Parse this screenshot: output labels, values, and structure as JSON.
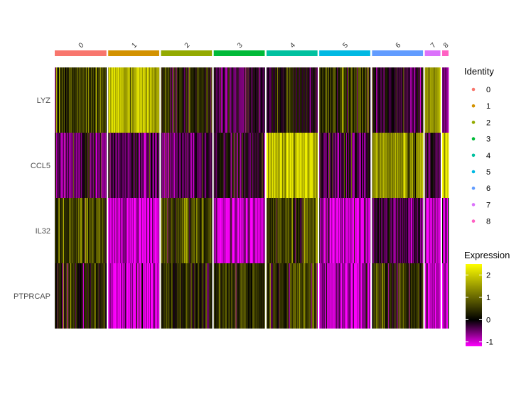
{
  "chart_data": {
    "type": "heatmap",
    "title": "",
    "xlabel": "",
    "ylabel": "",
    "genes": [
      "LYZ",
      "CCL5",
      "IL32",
      "PTPRCAP"
    ],
    "clusters": [
      {
        "id": "0",
        "color": "#F8766D",
        "cells": 73,
        "means": [
          0.5,
          -0.45,
          0.55,
          0.2
        ]
      },
      {
        "id": "1",
        "color": "#D39200",
        "cells": 72,
        "means": [
          1.8,
          -0.35,
          -0.95,
          -1.0
        ]
      },
      {
        "id": "2",
        "color": "#93AA00",
        "cells": 72,
        "means": [
          0.3,
          -0.3,
          0.7,
          0.3
        ]
      },
      {
        "id": "3",
        "color": "#00BA38",
        "cells": 72,
        "means": [
          -0.1,
          -0.15,
          -0.95,
          0.5
        ]
      },
      {
        "id": "4",
        "color": "#00C19F",
        "cells": 72,
        "means": [
          0.1,
          2.0,
          0.65,
          0.45
        ]
      },
      {
        "id": "5",
        "color": "#00B9E3",
        "cells": 72,
        "means": [
          0.55,
          -0.3,
          -0.9,
          -0.9
        ]
      },
      {
        "id": "6",
        "color": "#619CFF",
        "cells": 72,
        "means": [
          -0.1,
          1.4,
          -0.3,
          0.4
        ]
      },
      {
        "id": "7",
        "color": "#DB72FB",
        "cells": 22,
        "means": [
          1.5,
          -0.3,
          -0.95,
          -0.9
        ]
      },
      {
        "id": "8",
        "color": "#FF61C3",
        "cells": 9,
        "means": [
          -0.6,
          2.3,
          -1.0,
          -0.95
        ]
      }
    ],
    "legend_identity": {
      "title": "Identity",
      "items": [
        "0",
        "1",
        "2",
        "3",
        "4",
        "5",
        "6",
        "7",
        "8"
      ]
    },
    "legend_expression": {
      "title": "Expression",
      "ticks": [
        "2",
        "1",
        "0",
        "-1"
      ],
      "range": [
        -1.2,
        2.5
      ],
      "gradient": [
        "#FF00FF",
        "#000000",
        "#FFFF00"
      ]
    }
  }
}
